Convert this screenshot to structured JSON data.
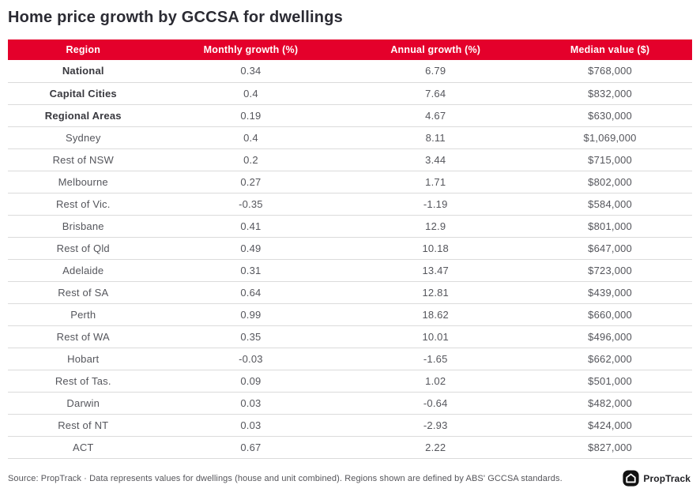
{
  "title": "Home price growth by GCCSA for dwellings",
  "chart_data": {
    "type": "table",
    "title": "Home price growth by GCCSA for dwellings",
    "columns": [
      "Region",
      "Monthly growth (%)",
      "Annual growth (%)",
      "Median value ($)"
    ],
    "rows": [
      {
        "region": "National",
        "monthly": "0.34",
        "annual": "6.79",
        "median": "$768,000",
        "bold": true
      },
      {
        "region": "Capital Cities",
        "monthly": "0.4",
        "annual": "7.64",
        "median": "$832,000",
        "bold": true
      },
      {
        "region": "Regional Areas",
        "monthly": "0.19",
        "annual": "4.67",
        "median": "$630,000",
        "bold": true
      },
      {
        "region": "Sydney",
        "monthly": "0.4",
        "annual": "8.11",
        "median": "$1,069,000",
        "bold": false
      },
      {
        "region": "Rest of NSW",
        "monthly": "0.2",
        "annual": "3.44",
        "median": "$715,000",
        "bold": false
      },
      {
        "region": "Melbourne",
        "monthly": "0.27",
        "annual": "1.71",
        "median": "$802,000",
        "bold": false
      },
      {
        "region": "Rest of Vic.",
        "monthly": "-0.35",
        "annual": "-1.19",
        "median": "$584,000",
        "bold": false
      },
      {
        "region": "Brisbane",
        "monthly": "0.41",
        "annual": "12.9",
        "median": "$801,000",
        "bold": false
      },
      {
        "region": "Rest of Qld",
        "monthly": "0.49",
        "annual": "10.18",
        "median": "$647,000",
        "bold": false
      },
      {
        "region": "Adelaide",
        "monthly": "0.31",
        "annual": "13.47",
        "median": "$723,000",
        "bold": false
      },
      {
        "region": "Rest of SA",
        "monthly": "0.64",
        "annual": "12.81",
        "median": "$439,000",
        "bold": false
      },
      {
        "region": "Perth",
        "monthly": "0.99",
        "annual": "18.62",
        "median": "$660,000",
        "bold": false
      },
      {
        "region": "Rest of WA",
        "monthly": "0.35",
        "annual": "10.01",
        "median": "$496,000",
        "bold": false
      },
      {
        "region": "Hobart",
        "monthly": "-0.03",
        "annual": "-1.65",
        "median": "$662,000",
        "bold": false
      },
      {
        "region": "Rest of Tas.",
        "monthly": "0.09",
        "annual": "1.02",
        "median": "$501,000",
        "bold": false
      },
      {
        "region": "Darwin",
        "monthly": "0.03",
        "annual": "-0.64",
        "median": "$482,000",
        "bold": false
      },
      {
        "region": "Rest of NT",
        "monthly": "0.03",
        "annual": "-2.93",
        "median": "$424,000",
        "bold": false
      },
      {
        "region": "ACT",
        "monthly": "0.67",
        "annual": "2.22",
        "median": "$827,000",
        "bold": false
      }
    ]
  },
  "footer": {
    "source_text": "Source: PropTrack · Data represents values for dwellings (house and unit combined). Regions shown are defined by ABS' GCCSA standards.",
    "logo_text": "PropTrack"
  },
  "colors": {
    "header_bg": "#e4002b",
    "header_text": "#ffffff",
    "title_text": "#2b2b33",
    "row_text": "#55565c",
    "bold_row_text": "#38383e",
    "divider": "#dbdbdb",
    "logo_bg": "#121212"
  }
}
